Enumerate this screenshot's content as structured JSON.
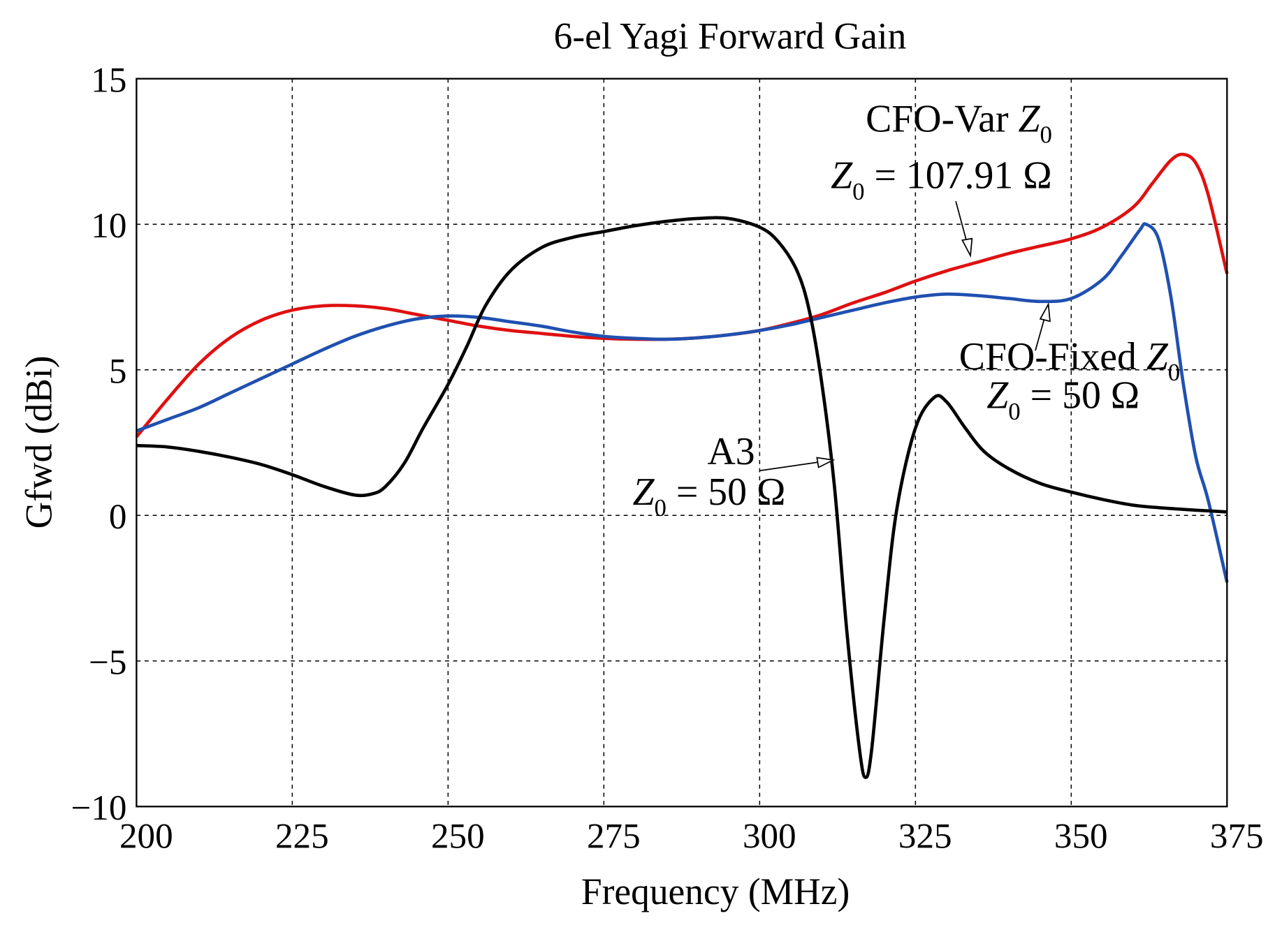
{
  "chart_data": {
    "type": "line",
    "title": "6-el Yagi Forward Gain",
    "xlabel": "Frequency (MHz)",
    "ylabel": "Gfwd (dBi)",
    "xlim": [
      200,
      375
    ],
    "ylim": [
      -10,
      15
    ],
    "xticks": [
      "200",
      "225",
      "250",
      "275",
      "300",
      "325",
      "350",
      "375"
    ],
    "yticks": [
      "15",
      "10",
      "5",
      "0",
      "−5",
      "−10"
    ],
    "grid": true,
    "series": [
      {
        "name": "CFO-Var Z0",
        "color": "#e01010",
        "x": [
          200,
          205,
          210,
          215,
          220,
          225,
          230,
          235,
          240,
          245,
          250,
          255,
          260,
          265,
          270,
          275,
          280,
          285,
          290,
          295,
          300,
          305,
          310,
          315,
          320,
          325,
          330,
          335,
          340,
          345,
          350,
          355,
          360,
          363,
          366,
          368,
          370,
          372,
          375
        ],
        "y": [
          2.7,
          4.0,
          5.2,
          6.1,
          6.7,
          7.05,
          7.2,
          7.2,
          7.1,
          6.9,
          6.7,
          6.5,
          6.35,
          6.25,
          6.15,
          6.08,
          6.05,
          6.05,
          6.1,
          6.2,
          6.35,
          6.6,
          6.9,
          7.3,
          7.65,
          8.05,
          8.4,
          8.7,
          9.0,
          9.25,
          9.5,
          9.9,
          10.6,
          11.4,
          12.2,
          12.4,
          12.1,
          11.0,
          8.3
        ]
      },
      {
        "name": "CFO-Fixed Z0",
        "color": "#2050b0",
        "x": [
          200,
          205,
          210,
          215,
          220,
          225,
          230,
          235,
          240,
          245,
          250,
          255,
          260,
          265,
          270,
          275,
          280,
          285,
          290,
          295,
          300,
          305,
          310,
          315,
          320,
          325,
          330,
          335,
          340,
          345,
          350,
          355,
          358,
          361,
          362,
          364,
          366,
          368,
          370,
          372,
          375
        ],
        "y": [
          2.9,
          3.3,
          3.7,
          4.2,
          4.7,
          5.2,
          5.7,
          6.15,
          6.5,
          6.75,
          6.85,
          6.8,
          6.65,
          6.5,
          6.3,
          6.15,
          6.08,
          6.05,
          6.1,
          6.2,
          6.35,
          6.55,
          6.8,
          7.05,
          7.3,
          7.5,
          7.6,
          7.55,
          7.45,
          7.35,
          7.45,
          8.1,
          8.9,
          9.8,
          10.0,
          9.5,
          7.5,
          4.5,
          2.0,
          0.5,
          -2.3
        ]
      },
      {
        "name": "A3",
        "color": "#000000",
        "x": [
          200,
          205,
          210,
          215,
          220,
          225,
          230,
          235,
          238,
          240,
          243,
          246,
          250,
          253,
          256,
          260,
          265,
          270,
          275,
          280,
          285,
          290,
          295,
          300,
          303,
          306,
          308,
          310,
          312,
          314,
          316,
          317,
          318,
          320,
          322,
          325,
          328,
          330,
          333,
          336,
          340,
          345,
          350,
          355,
          360,
          365,
          370,
          375
        ],
        "y": [
          2.4,
          2.35,
          2.2,
          2.0,
          1.75,
          1.4,
          1.0,
          0.7,
          0.75,
          1.0,
          1.8,
          3.0,
          4.5,
          5.8,
          7.2,
          8.4,
          9.2,
          9.55,
          9.75,
          9.95,
          10.1,
          10.2,
          10.2,
          9.9,
          9.4,
          8.4,
          7.0,
          4.5,
          1.0,
          -4.0,
          -8.0,
          -9.0,
          -8.0,
          -3.5,
          0.2,
          3.0,
          4.05,
          3.9,
          3.0,
          2.2,
          1.6,
          1.1,
          0.8,
          0.55,
          0.35,
          0.25,
          0.18,
          0.12
        ]
      }
    ],
    "annotations": [
      {
        "label": "CFO-Var",
        "z": "Z",
        "sub": "0",
        "eq": "= 107.91 Ω"
      },
      {
        "label": "CFO-Fixed",
        "z": "Z",
        "sub": "0",
        "eq": "= 50 Ω"
      },
      {
        "label": "A3",
        "z": "Z",
        "sub": "0",
        "eq": "= 50 Ω"
      }
    ]
  }
}
